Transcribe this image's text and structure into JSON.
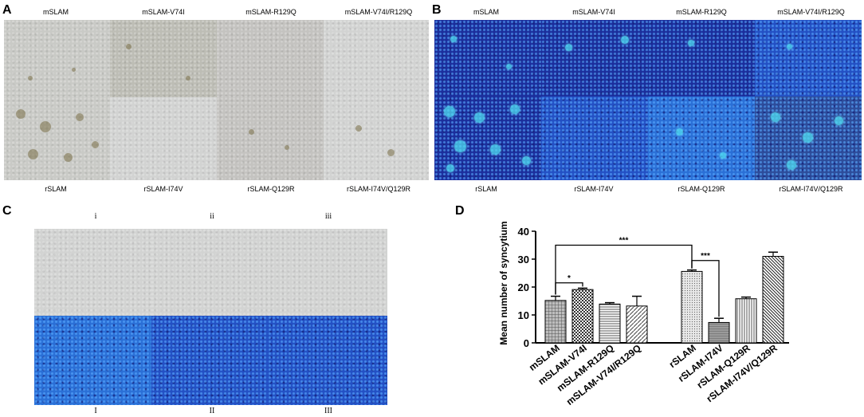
{
  "panels": {
    "A": {
      "label": "A",
      "top_captions": [
        "mSLAM",
        "mSLAM-V74I",
        "mSLAM-R129Q",
        "mSLAM-V74I/R129Q"
      ],
      "bottom_captions": [
        "rSLAM",
        "rSLAM-I74V",
        "rSLAM-Q129R",
        "rSLAM-I74V/Q129R"
      ]
    },
    "B": {
      "label": "B",
      "top_captions": [
        "mSLAM",
        "mSLAM-V74I",
        "mSLAM-R129Q",
        "mSLAM-V74I/R129Q"
      ],
      "bottom_captions": [
        "rSLAM",
        "rSLAM-I74V",
        "rSLAM-Q129R",
        "rSLAM-I74V/Q129R"
      ]
    },
    "C": {
      "label": "C",
      "top_captions": [
        "i",
        "ii",
        "iii"
      ],
      "bottom_captions": [
        "I",
        "II",
        "III"
      ]
    },
    "D": {
      "label": "D"
    }
  },
  "chart_data": {
    "type": "bar",
    "ylabel": "Mean number of syncytium",
    "ylim": [
      0,
      40
    ],
    "yticks": [
      0,
      10,
      20,
      30,
      40
    ],
    "categories": [
      "mSLAM",
      "mSLAM-V74I",
      "mSLAM-R129Q",
      "mSLAM-V74I/R129Q",
      "rSLAM",
      "rSLAM-I74V",
      "rSLAM-Q129R",
      "rSLAM-I74V/Q129R"
    ],
    "values": [
      15.2,
      19.1,
      13.9,
      13.2,
      25.6,
      7.3,
      15.8,
      31.0
    ],
    "errors": [
      1.5,
      0.5,
      0.5,
      3.5,
      0.5,
      1.5,
      0.6,
      1.5
    ],
    "significance": [
      {
        "from": "mSLAM",
        "to": "mSLAM-V74I",
        "label": "*"
      },
      {
        "from": "mSLAM",
        "to": "rSLAM",
        "label": "***"
      },
      {
        "from": "rSLAM",
        "to": "rSLAM-I74V",
        "label": "***"
      }
    ]
  }
}
